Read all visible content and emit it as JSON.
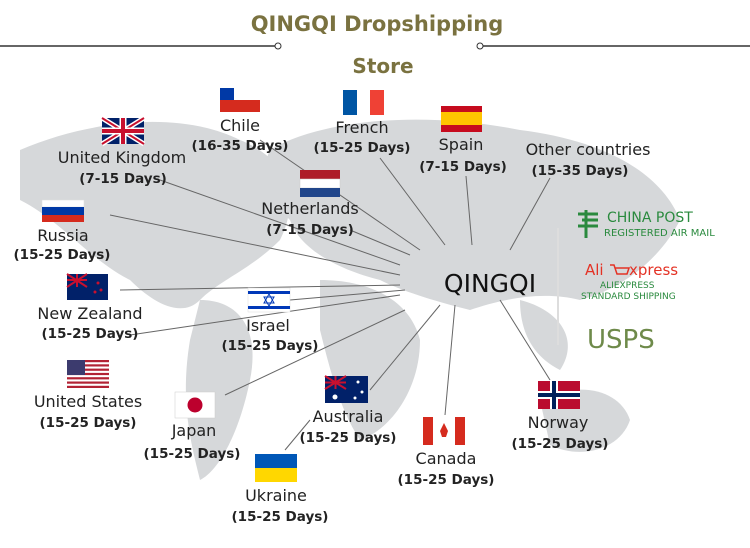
{
  "header": {
    "title": "QINGQI Dropshipping",
    "subtitle": "Store"
  },
  "hub": {
    "label": "QINGQI"
  },
  "destinations": [
    {
      "country": "Chile",
      "days": "(16-35 Days)"
    },
    {
      "country": "French",
      "days": "(15-25 Days)"
    },
    {
      "country": "Spain",
      "days": "(7-15 Days)"
    },
    {
      "country": "Other countries",
      "days": "(15-35 Days)"
    },
    {
      "country": "United Kingdom",
      "days": "(7-15 Days)"
    },
    {
      "country": "Netherlands",
      "days": "(7-15 Days)"
    },
    {
      "country": "Russia",
      "days": "(15-25 Days)"
    },
    {
      "country": "New Zealand",
      "days": "(15-25 Days)"
    },
    {
      "country": "Israel",
      "days": "(15-25 Days)"
    },
    {
      "country": "United States",
      "days": "(15-25 Days)"
    },
    {
      "country": "Japan",
      "days": "(15-25 Days)"
    },
    {
      "country": "Australia",
      "days": "(15-25 Days)"
    },
    {
      "country": "Canada",
      "days": "(15-25 Days)"
    },
    {
      "country": "Norway",
      "days": "(15-25 Days)"
    },
    {
      "country": "Ukraine",
      "days": "(15-25 Days)"
    }
  ],
  "carriers": {
    "china_post": {
      "name": "CHINA POST",
      "detail": "REGISTERED AIR MAIL"
    },
    "aliexpress": {
      "prefix": "Ali",
      "suffix": "xpress",
      "line1": "ALIEXPRESS",
      "line2": "STANDARD SHIPPING"
    },
    "usps": {
      "name": "USPS"
    }
  }
}
